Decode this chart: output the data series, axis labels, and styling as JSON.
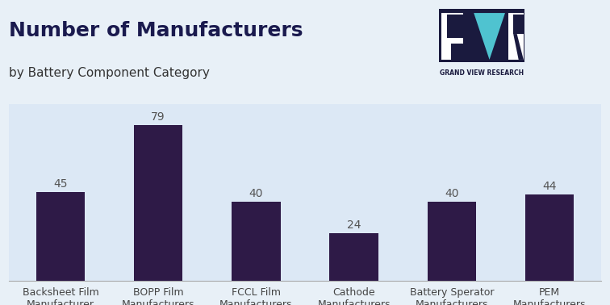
{
  "title": "Number of Manufacturers",
  "subtitle": "by Battery Component Category",
  "categories": [
    "Backsheet Film\nManufacturer",
    "BOPP Film\nManufacturers",
    "FCCL Film\nManufacturers",
    "Cathode\nManufacturers",
    "Battery Sperator\nManufacturers",
    "PEM\nManufacturers"
  ],
  "values": [
    45,
    79,
    40,
    24,
    40,
    44
  ],
  "bar_color": "#2e1a47",
  "background_color": "#e8f0f7",
  "plot_bg_color": "#dce8f5",
  "title_color": "#1a1a4e",
  "subtitle_color": "#333333",
  "label_color": "#444444",
  "value_label_color": "#555555",
  "title_fontsize": 18,
  "subtitle_fontsize": 11,
  "tick_fontsize": 9,
  "value_fontsize": 10,
  "ylim": [
    0,
    90
  ],
  "bar_width": 0.5
}
